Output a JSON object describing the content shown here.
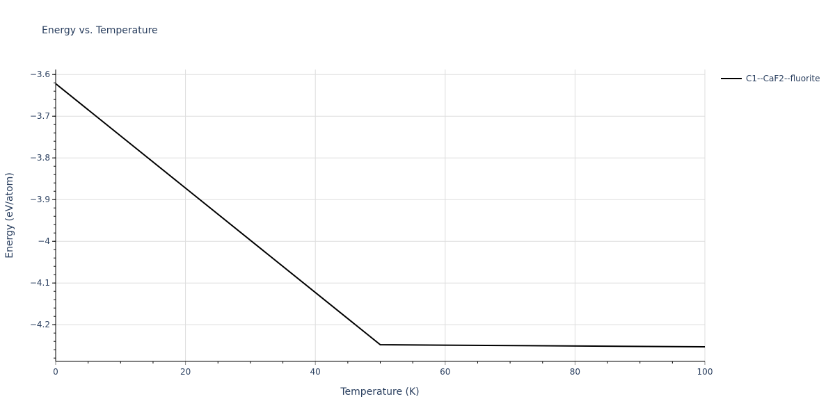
{
  "title": "Energy vs. Temperature",
  "legend": {
    "items": [
      {
        "label": "C1--CaF2--fluorite",
        "color": "#000000"
      }
    ]
  },
  "colors": {
    "grid": "#dddddd",
    "axis": "#000000",
    "text": "#2a3f5f",
    "series": "#000000"
  },
  "chart_data": {
    "type": "line",
    "title": "Energy vs. Temperature",
    "xlabel": "Temperature (K)",
    "ylabel": "Energy (eV/atom)",
    "xlim": [
      0,
      100
    ],
    "ylim": [
      -4.288,
      -3.588
    ],
    "xticks": [
      0,
      20,
      40,
      60,
      80,
      100
    ],
    "xtick_labels": [
      "0",
      "20",
      "40",
      "60",
      "80",
      "100"
    ],
    "x_minor_step": 5,
    "yticks": [
      -3.6,
      -3.7,
      -3.8,
      -3.9,
      -4.0,
      -4.1,
      -4.2
    ],
    "ytick_labels": [
      "−3.6",
      "−3.7",
      "−3.8",
      "−3.9",
      "−4",
      "−4.1",
      "−4.2"
    ],
    "y_minor_step": 0.02,
    "grid": true,
    "legend_position": "top-right-outside",
    "series": [
      {
        "name": "C1--CaF2--fluorite",
        "x": [
          0,
          50,
          100
        ],
        "y": [
          -3.622,
          -4.248,
          -4.253
        ]
      }
    ]
  }
}
